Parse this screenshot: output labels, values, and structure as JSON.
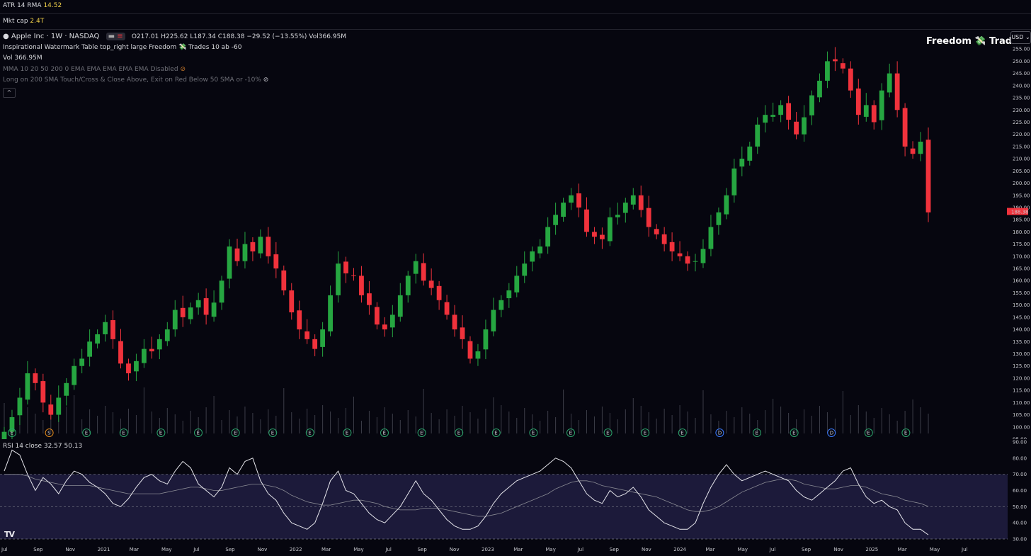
{
  "indicators_top": {
    "atr_label": "ATR 14 RMA",
    "atr_value": "14.52",
    "mktcap_label": "Mkt cap",
    "mktcap_value": "2.4T"
  },
  "header": {
    "symbol": "Apple Inc · 1W · NASDAQ",
    "ohlc": "O217.01  H225.62  L187.34  C188.38  −29.52 (−13.55%)  Vol366.95M",
    "watermark_table": "Inspirational Watermark Table top_right large Freedom 💸 Trades 10 ab -60",
    "vol_label": "Vol",
    "vol_value": "366.95M",
    "mma_label": "MMA 10 20 50 200 0 EMA EMA EMA EMA EMA Disabled",
    "strategy_label": "Long on 200 SMA Touch/Cross & Close Above, Exit on Red Below 50 SMA or -10%",
    "collapse_glyph": "^"
  },
  "watermark": {
    "text_left": "Freedom",
    "leaf": "💸",
    "text_right": "Trades"
  },
  "currency": "USD",
  "tv_logo": "TV",
  "colors": {
    "up": "#26a641",
    "down": "#f0323c",
    "bg": "#06060f",
    "rsi_band": "#1c1a3a",
    "price_tag": "#f0323c"
  },
  "chart_data": [
    {
      "type": "candlestick",
      "title": "Apple Inc · 1W · NASDAQ",
      "ylim": [
        95,
        260
      ],
      "yticks": [
        95,
        100,
        105,
        110,
        115,
        120,
        125,
        130,
        135,
        140,
        145,
        150,
        155,
        160,
        165,
        170,
        175,
        180,
        185,
        190,
        195,
        200,
        205,
        210,
        215,
        220,
        225,
        230,
        235,
        240,
        245,
        250,
        255
      ],
      "last_price": "188.38",
      "series": [
        {
          "name": "close",
          "values": [
            98,
            104,
            112,
            122,
            118,
            110,
            105,
            112,
            118,
            125,
            128,
            135,
            138,
            143,
            136,
            126,
            122,
            127,
            132,
            131,
            136,
            140,
            148,
            145,
            149,
            152,
            146,
            151,
            160,
            174,
            168,
            175,
            172,
            178,
            170,
            165,
            156,
            147,
            140,
            136,
            132,
            140,
            154,
            167,
            163,
            162,
            154,
            150,
            142,
            140,
            146,
            154,
            162,
            168,
            160,
            157,
            152,
            146,
            140,
            136,
            128,
            131,
            140,
            148,
            152,
            156,
            162,
            167,
            172,
            174,
            182,
            187,
            192,
            195,
            190,
            180,
            178,
            177,
            186,
            187,
            192,
            195,
            189,
            182,
            179,
            175,
            172,
            170,
            167,
            168,
            173,
            182,
            188,
            195,
            206,
            210,
            215,
            224,
            228,
            228,
            232,
            226,
            220,
            227,
            236,
            242,
            250,
            250,
            247,
            238,
            228,
            232,
            225,
            238,
            245,
            230,
            215,
            212,
            217,
            188
          ]
        },
        {
          "name": "volume",
          "values": []
        }
      ],
      "xlabels": [
        "Jul",
        "Sep",
        "Nov",
        "2021",
        "Mar",
        "May",
        "Jul",
        "Sep",
        "Nov",
        "2022",
        "Mar",
        "May",
        "Jul",
        "Sep",
        "Nov",
        "2023",
        "Mar",
        "May",
        "Jul",
        "Sep",
        "Nov",
        "2024",
        "Mar",
        "May",
        "Jul",
        "Sep",
        "Nov",
        "2025",
        "Mar",
        "May",
        "Jul"
      ],
      "event_markers": [
        "E",
        "S",
        "E",
        "E",
        "E",
        "E",
        "E",
        "E",
        "E",
        "E",
        "E",
        "E",
        "E",
        "E",
        "E",
        "E",
        "E",
        "E",
        "E",
        "D",
        "E",
        "E",
        "D",
        "E",
        "E"
      ]
    },
    {
      "type": "line",
      "title": "RSI 14 close",
      "values_text": "32.57  50.13",
      "ylim": [
        30,
        90
      ],
      "yticks": [
        30,
        40,
        50,
        60,
        70,
        80,
        90
      ],
      "bands": [
        30,
        50,
        70
      ],
      "series": [
        {
          "name": "RSI",
          "values": [
            72,
            85,
            82,
            70,
            60,
            68,
            64,
            58,
            66,
            72,
            70,
            65,
            62,
            58,
            52,
            50,
            55,
            62,
            68,
            70,
            66,
            64,
            72,
            78,
            74,
            64,
            60,
            56,
            62,
            74,
            70,
            78,
            80,
            66,
            58,
            54,
            46,
            40,
            38,
            36,
            40,
            52,
            66,
            72,
            60,
            58,
            52,
            46,
            42,
            40,
            45,
            50,
            58,
            66,
            58,
            54,
            48,
            42,
            38,
            36,
            36,
            38,
            44,
            52,
            58,
            62,
            66,
            68,
            70,
            72,
            76,
            80,
            78,
            74,
            66,
            58,
            54,
            52,
            60,
            56,
            58,
            62,
            56,
            48,
            44,
            40,
            38,
            36,
            36,
            40,
            52,
            62,
            70,
            76,
            70,
            66,
            68,
            70,
            72,
            70,
            68,
            66,
            60,
            56,
            54,
            58,
            62,
            66,
            72,
            74,
            64,
            56,
            52,
            54,
            50,
            48,
            40,
            36,
            36,
            32.57
          ]
        },
        {
          "name": "RSI MA",
          "values": [
            70,
            70,
            70,
            69,
            67,
            66,
            65,
            64,
            63,
            63,
            63,
            63,
            62,
            61,
            60,
            59,
            58,
            58,
            58,
            58,
            58,
            59,
            60,
            61,
            62,
            62,
            61,
            60,
            60,
            61,
            62,
            63,
            64,
            64,
            63,
            62,
            60,
            57,
            55,
            53,
            52,
            51,
            51,
            52,
            53,
            54,
            54,
            53,
            52,
            50,
            49,
            48,
            48,
            48,
            49,
            49,
            49,
            48,
            47,
            46,
            45,
            44,
            44,
            45,
            46,
            48,
            50,
            52,
            54,
            56,
            58,
            61,
            63,
            65,
            66,
            66,
            65,
            63,
            62,
            61,
            60,
            59,
            58,
            57,
            56,
            54,
            52,
            50,
            48,
            47,
            47,
            48,
            50,
            53,
            56,
            59,
            61,
            63,
            65,
            66,
            67,
            67,
            66,
            64,
            63,
            62,
            61,
            61,
            62,
            63,
            63,
            62,
            60,
            58,
            57,
            56,
            54,
            53,
            52,
            50.13
          ]
        }
      ]
    }
  ]
}
